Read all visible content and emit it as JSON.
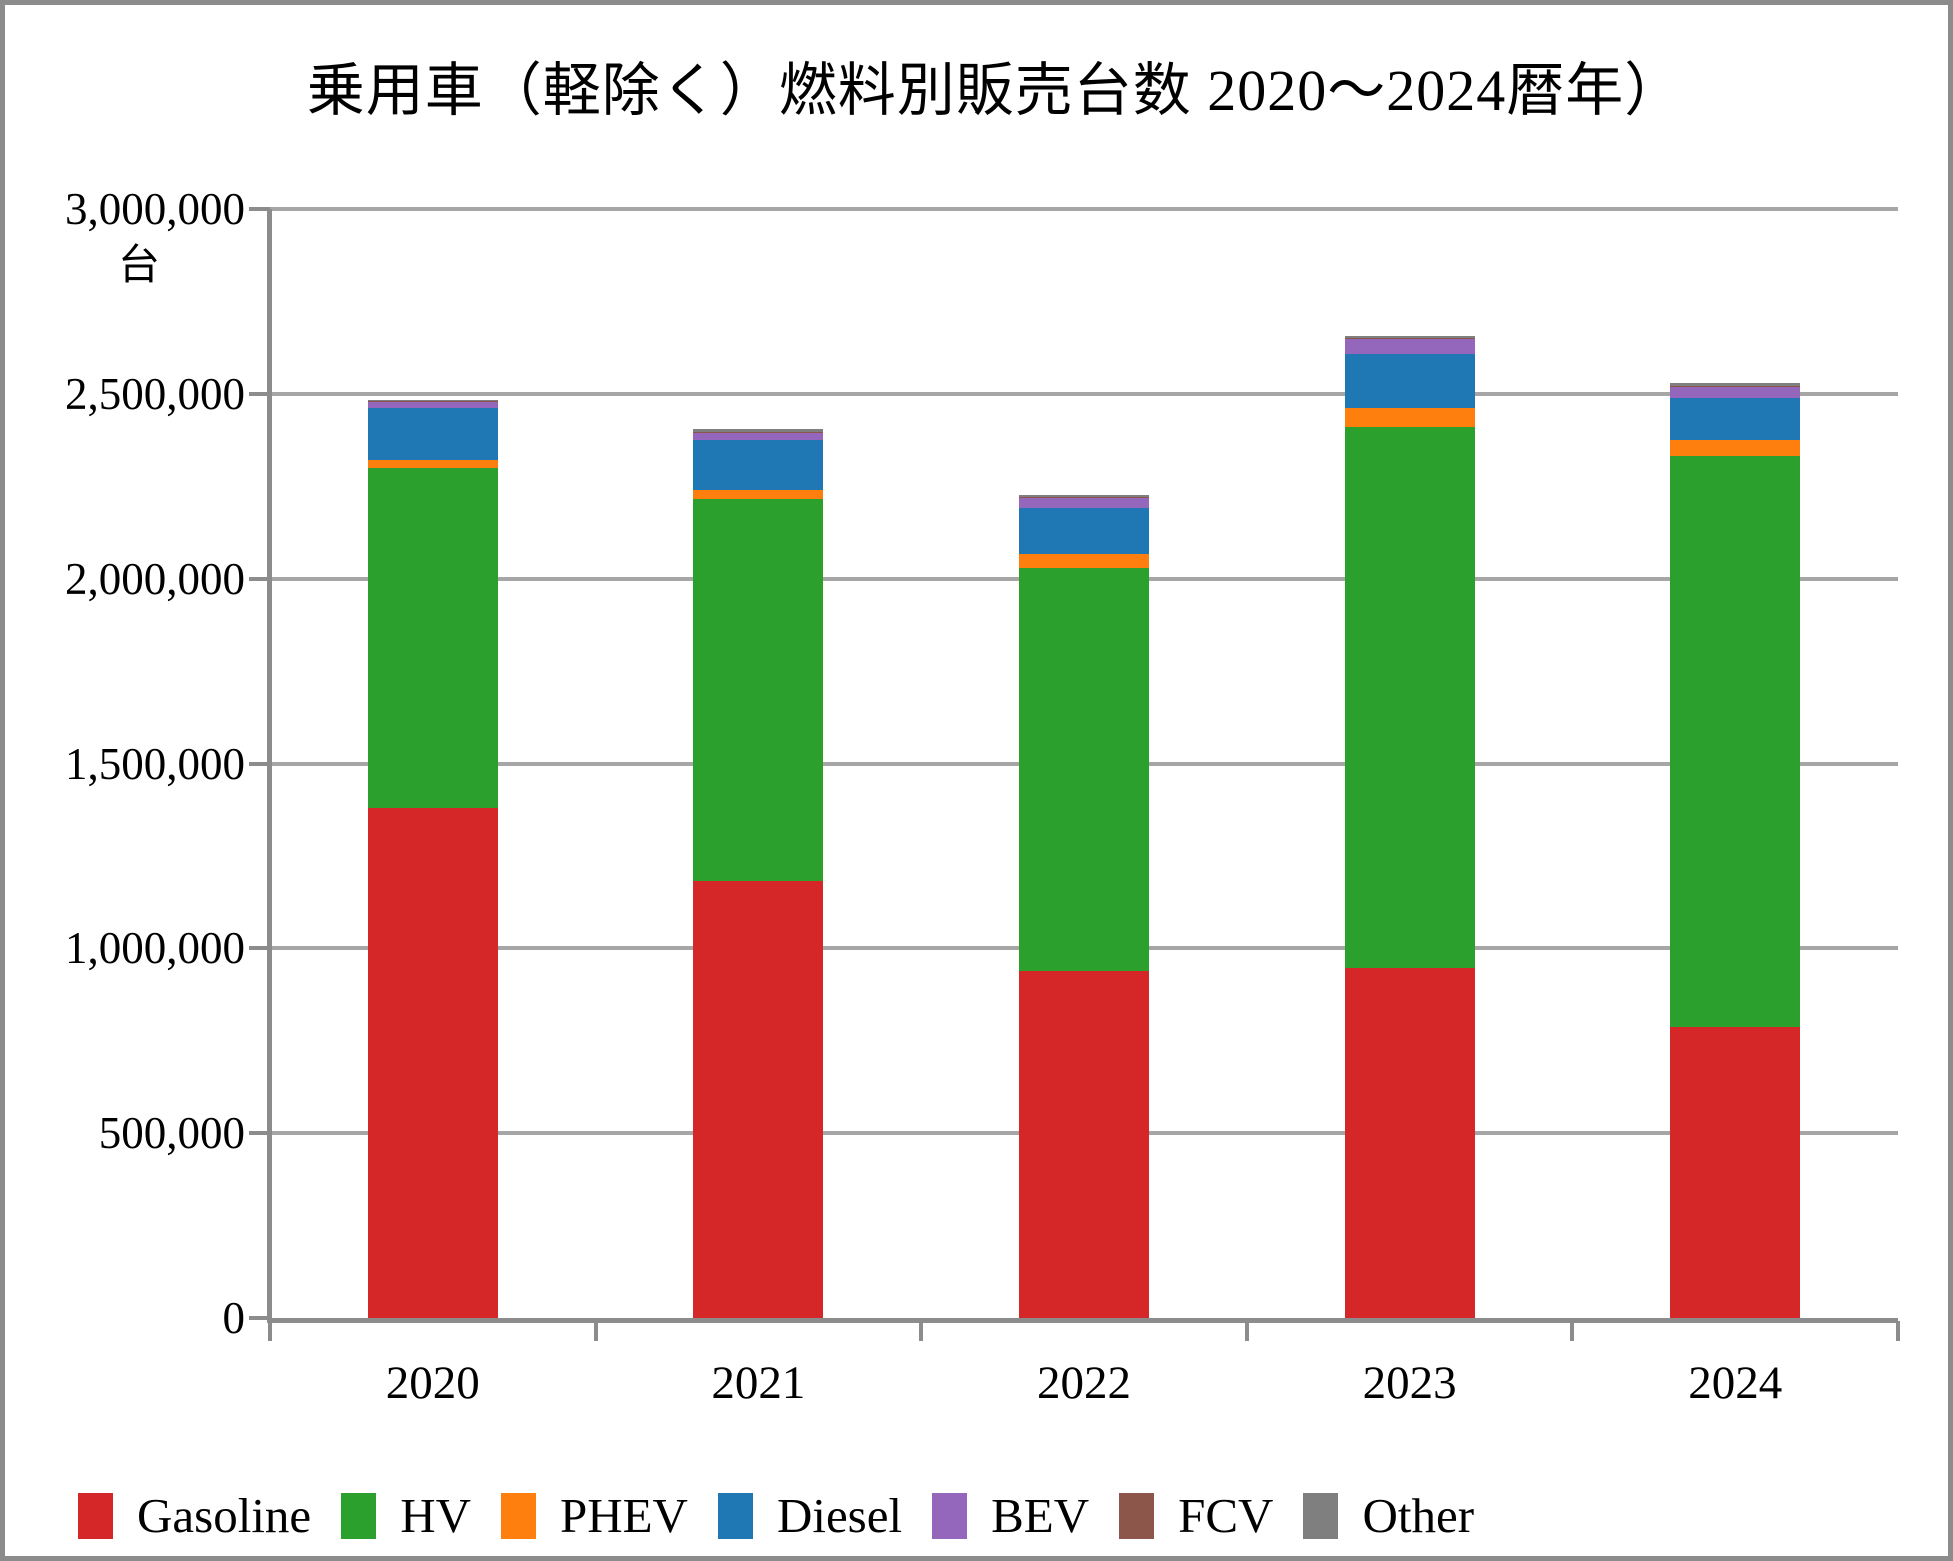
{
  "chart_data": {
    "type": "bar",
    "stacked": true,
    "title": "乗用車（軽除く）燃料別販売台数 2020〜2024暦年）",
    "ylabel": "台",
    "xlabel": "",
    "categories": [
      "2020",
      "2021",
      "2022",
      "2023",
      "2024"
    ],
    "series": [
      {
        "name": "Gasoline",
        "color": "#d62728",
        "values": [
          1380000,
          1183000,
          940000,
          948000,
          788000
        ]
      },
      {
        "name": "HV",
        "color": "#2ca02c",
        "values": [
          919000,
          1032000,
          1089000,
          1461000,
          1544000
        ]
      },
      {
        "name": "PHEV",
        "color": "#ff7f0e",
        "values": [
          22000,
          24000,
          39000,
          53000,
          44000
        ]
      },
      {
        "name": "Diesel",
        "color": "#1f77b4",
        "values": [
          141000,
          137000,
          123000,
          145000,
          113000
        ]
      },
      {
        "name": "BEV",
        "color": "#9467bd",
        "values": [
          16000,
          19000,
          28000,
          42000,
          32000
        ]
      },
      {
        "name": "FCV",
        "color": "#8c564b",
        "values": [
          2000,
          2000,
          1000,
          1000,
          1000
        ]
      },
      {
        "name": "Other",
        "color": "#7f7f7f",
        "values": [
          4000,
          8000,
          5000,
          7000,
          6000
        ]
      }
    ],
    "ylim": [
      0,
      3000000
    ],
    "ytick_interval": 500000,
    "yticks": [
      {
        "value": 0,
        "label": "0"
      },
      {
        "value": 500000,
        "label": "500,000"
      },
      {
        "value": 1000000,
        "label": "1,000,000"
      },
      {
        "value": 1500000,
        "label": "1,500,000"
      },
      {
        "value": 2000000,
        "label": "2,000,000"
      },
      {
        "value": 2500000,
        "label": "2,500,000"
      },
      {
        "value": 3000000,
        "label": "3,000,000"
      }
    ],
    "grid": true,
    "legend_position": "bottom"
  },
  "style_colors": {
    "gridline": "#a6a6a6",
    "axis": "#8c8c8c",
    "frame_border": "#8c8c8c",
    "background": "#ffffff",
    "text": "#000000"
  }
}
